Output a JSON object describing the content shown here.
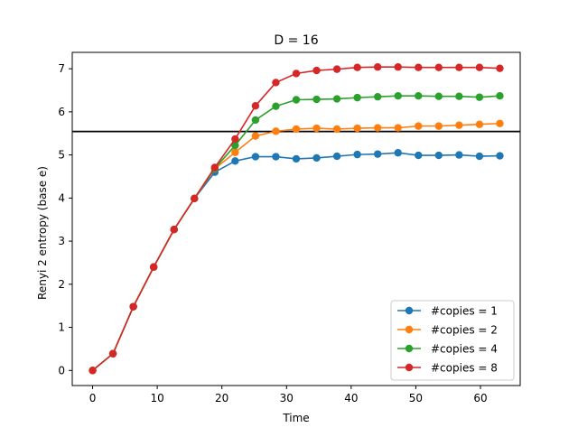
{
  "chart_data": {
    "type": "line",
    "title": "D = 16",
    "xlabel": "Time",
    "ylabel": "Renyi 2 entropy (base e)",
    "xlim": [
      -3.15,
      66.15
    ],
    "ylim": [
      -0.35,
      7.38
    ],
    "xticks": [
      0,
      10,
      20,
      30,
      40,
      50,
      60
    ],
    "yticks": [
      0,
      1,
      2,
      3,
      4,
      5,
      6,
      7
    ],
    "grid": false,
    "legend_position": "lower right",
    "x": [
      0,
      3.15,
      6.3,
      9.45,
      12.6,
      15.75,
      18.9,
      22.05,
      25.2,
      28.35,
      31.5,
      34.65,
      37.8,
      40.95,
      44.1,
      47.25,
      50.4,
      53.55,
      56.7,
      59.85,
      63.0
    ],
    "series": [
      {
        "name": "#copies = 1",
        "color": "#1f77b4",
        "values": [
          0.0,
          0.39,
          1.48,
          2.4,
          3.27,
          3.99,
          4.6,
          4.86,
          4.96,
          4.96,
          4.91,
          4.93,
          4.97,
          5.01,
          5.02,
          5.05,
          4.99,
          4.99,
          5.0,
          4.97,
          4.98
        ]
      },
      {
        "name": "#copies = 2",
        "color": "#ff7f0e",
        "values": [
          0.0,
          0.39,
          1.48,
          2.4,
          3.27,
          3.99,
          4.68,
          5.06,
          5.44,
          5.55,
          5.6,
          5.62,
          5.6,
          5.62,
          5.63,
          5.63,
          5.67,
          5.67,
          5.69,
          5.71,
          5.73
        ]
      },
      {
        "name": "#copies = 4",
        "color": "#2ca02c",
        "values": [
          0.0,
          0.39,
          1.48,
          2.4,
          3.27,
          3.99,
          4.69,
          5.22,
          5.81,
          6.13,
          6.28,
          6.29,
          6.3,
          6.33,
          6.35,
          6.37,
          6.37,
          6.36,
          6.36,
          6.34,
          6.37
        ]
      },
      {
        "name": "#copies = 8",
        "color": "#d62728",
        "values": [
          0.0,
          0.39,
          1.48,
          2.4,
          3.27,
          3.99,
          4.71,
          5.37,
          6.14,
          6.68,
          6.89,
          6.96,
          6.99,
          7.03,
          7.04,
          7.04,
          7.03,
          7.03,
          7.03,
          7.03,
          7.01
        ]
      }
    ],
    "hline": {
      "y": 5.545,
      "color": "#000000"
    }
  }
}
